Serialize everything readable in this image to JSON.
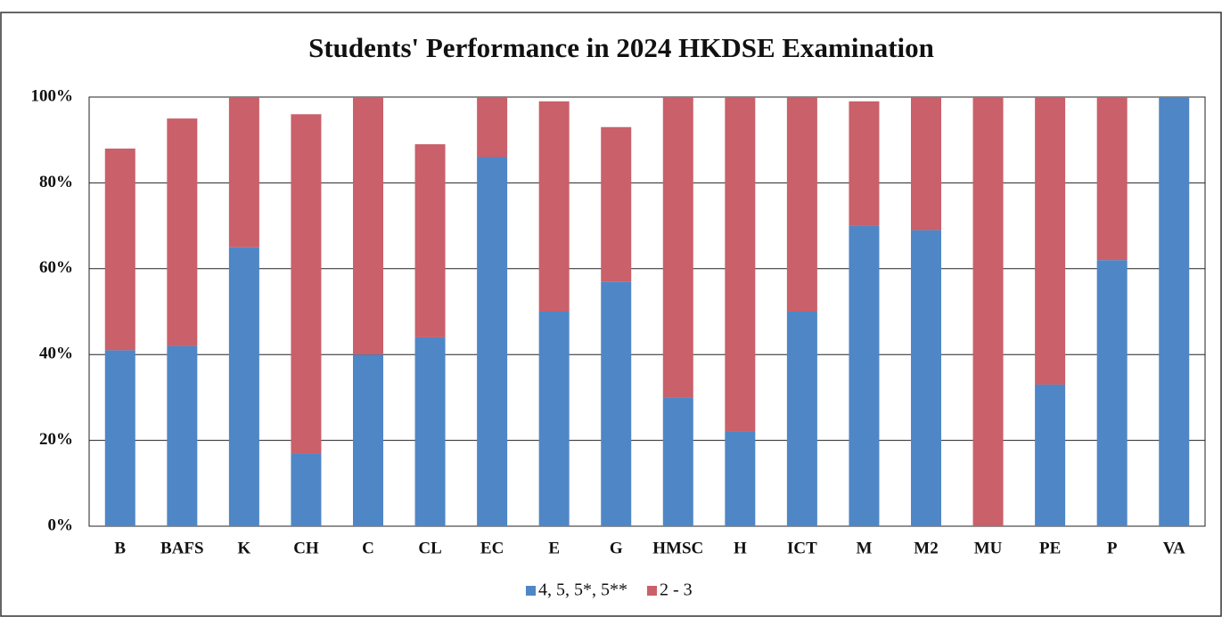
{
  "chart_data": {
    "type": "stacked_bar",
    "title": "Students' Performance in 2024 HKDSE Examination",
    "categories": [
      "B",
      "BAFS",
      "K",
      "CH",
      "C",
      "CL",
      "EC",
      "E",
      "G",
      "HMSC",
      "H",
      "ICT",
      "M",
      "M2",
      "MU",
      "PE",
      "P",
      "VA"
    ],
    "series": [
      {
        "name": "4, 5, 5*, 5**",
        "color": "#4f86c6",
        "values": [
          41,
          42,
          65,
          17,
          40,
          44,
          86,
          50,
          57,
          30,
          22,
          50,
          70,
          69,
          0,
          33,
          62,
          100
        ]
      },
      {
        "name": "2 - 3",
        "color": "#c9606a",
        "values": [
          47,
          53,
          35,
          79,
          60,
          45,
          14,
          49,
          36,
          70,
          78,
          50,
          29,
          31,
          100,
          67,
          38,
          0
        ]
      }
    ],
    "ylim": [
      0,
      100
    ],
    "yticks": [
      {
        "value": 0,
        "label": "0%"
      },
      {
        "value": 20,
        "label": "20%"
      },
      {
        "value": 40,
        "label": "40%"
      },
      {
        "value": 60,
        "label": "60%"
      },
      {
        "value": 80,
        "label": "80%"
      },
      {
        "value": 100,
        "label": "100%"
      }
    ],
    "grid": true,
    "legend": "bottom"
  }
}
